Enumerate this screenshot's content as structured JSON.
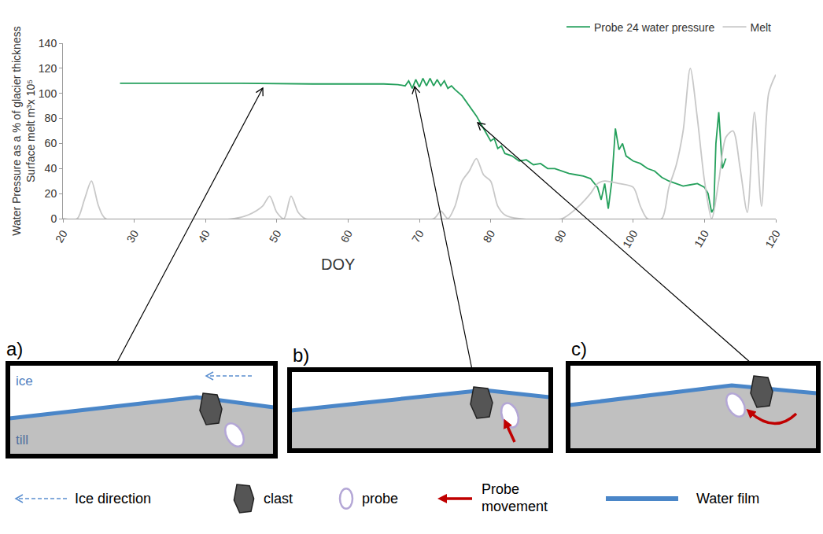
{
  "chart_data": {
    "type": "line",
    "x_label": "DOY",
    "y_label": [
      "Water Pressure as a % of glacier thickness",
      "Surface melt m³x 10⁵"
    ],
    "xlim": [
      20,
      120
    ],
    "xticks": [
      20,
      30,
      40,
      50,
      60,
      70,
      80,
      90,
      100,
      110,
      120
    ],
    "ylim": [
      0,
      140
    ],
    "yticks": [
      0,
      20,
      40,
      60,
      80,
      100,
      120,
      140
    ],
    "grid": false,
    "legend": "top right",
    "series": [
      {
        "name": "Probe 24 water pressure",
        "color": "#25a05c",
        "x": [
          28,
          35,
          45,
          55,
          65,
          67,
          68,
          68.5,
          69,
          69.5,
          70,
          70.5,
          71,
          71.5,
          72,
          72.5,
          73,
          73.5,
          74,
          74.5,
          75,
          76,
          77,
          78,
          79,
          80,
          80.5,
          81,
          81.5,
          82,
          83,
          84,
          85,
          86,
          87,
          88,
          89,
          90,
          91,
          92,
          93,
          94,
          95,
          95.5,
          96,
          96.5,
          97,
          97.5,
          98,
          98.5,
          99,
          100,
          101,
          102,
          103,
          104,
          105,
          106,
          107,
          108,
          109,
          110,
          110.5,
          111,
          111.3,
          111.6,
          112,
          112.5,
          113
        ],
        "values": [
          108,
          108,
          108,
          107.5,
          107.5,
          107,
          106,
          110,
          104,
          111,
          105,
          112,
          106,
          112,
          106,
          111,
          106,
          110,
          104,
          106,
          103,
          98,
          90,
          82,
          72,
          62,
          64,
          56,
          58,
          52,
          50,
          46,
          47,
          43,
          44,
          40,
          40,
          38,
          36,
          35,
          34,
          32,
          25,
          15,
          28,
          8,
          30,
          72,
          55,
          60,
          50,
          46,
          44,
          40,
          38,
          33,
          30,
          28,
          26,
          27,
          28,
          25,
          20,
          5,
          8,
          60,
          85,
          40,
          48
        ]
      },
      {
        "name": "Melt",
        "color": "#c8c8c8",
        "line_style": "smooth",
        "x": [
          20,
          22,
          23,
          24,
          25,
          26,
          44,
          46,
          48,
          49,
          50,
          51,
          52,
          53,
          54,
          72,
          73,
          74,
          75,
          76,
          77,
          78,
          79,
          80,
          81,
          82,
          84,
          90,
          92,
          94,
          95,
          96,
          98,
          100,
          101,
          102,
          104,
          105,
          106,
          107,
          108,
          109,
          110,
          111,
          112,
          113,
          114,
          115,
          116,
          117,
          118,
          119,
          120
        ],
        "values": [
          0,
          0,
          15,
          30,
          10,
          0,
          0,
          3,
          10,
          18,
          5,
          0,
          18,
          5,
          0,
          0,
          6,
          0,
          10,
          30,
          38,
          48,
          35,
          30,
          10,
          3,
          0,
          0,
          8,
          20,
          28,
          30,
          28,
          25,
          10,
          0,
          0,
          25,
          42,
          70,
          120,
          80,
          30,
          0,
          30,
          65,
          70,
          40,
          5,
          85,
          10,
          100,
          115
        ]
      }
    ]
  },
  "diagram": {
    "panels": [
      {
        "label": "a)",
        "layer_labels": [
          "ice",
          "till"
        ]
      },
      {
        "label": "b)"
      },
      {
        "label": "c)"
      }
    ],
    "legend": [
      {
        "symbol": "ice direction",
        "text": "Ice direction"
      },
      {
        "symbol": "clast",
        "text": "clast"
      },
      {
        "symbol": "probe",
        "text": "probe"
      },
      {
        "symbol": "probe movement",
        "text": "Probe movement"
      },
      {
        "symbol": "water film",
        "text": "Water film"
      }
    ]
  }
}
